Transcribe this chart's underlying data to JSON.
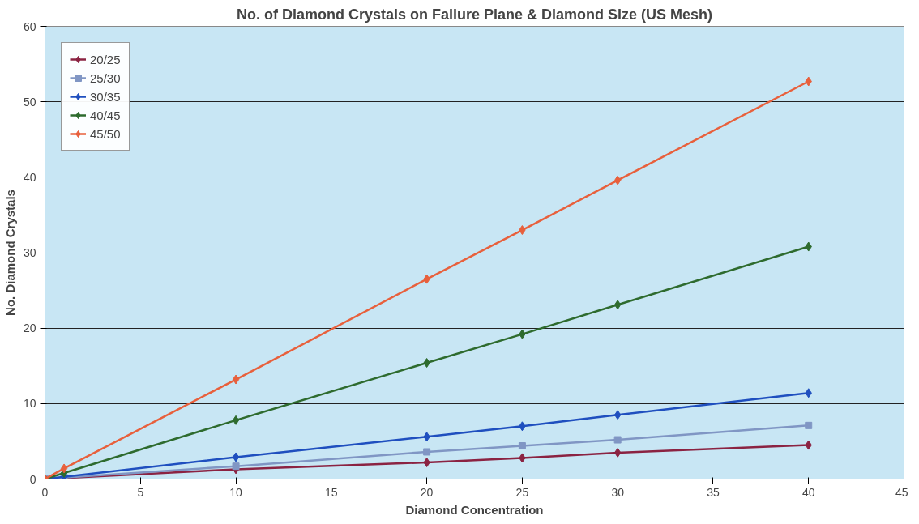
{
  "chart_data": {
    "type": "line",
    "title": "No. of Diamond Crystals on Failure Plane & Diamond Size (US Mesh)",
    "xlabel": "Diamond Concentration",
    "ylabel": "No. Diamond Crystals",
    "x": [
      0,
      1,
      10,
      20,
      25,
      30,
      40
    ],
    "series": [
      {
        "name": "20/25",
        "color": "#8b2342",
        "marker": "diamond",
        "x": [
          0,
          10,
          20,
          25,
          30,
          40
        ],
        "values": [
          0,
          1.3,
          2.2,
          2.8,
          3.5,
          4.5
        ]
      },
      {
        "name": "25/30",
        "color": "#8096c4",
        "marker": "square",
        "values": [
          0,
          0.2,
          1.7,
          3.6,
          4.4,
          5.2,
          7.1
        ]
      },
      {
        "name": "30/35",
        "color": "#1f4fbf",
        "marker": "diamond",
        "values": [
          0,
          0.3,
          2.9,
          5.6,
          7.0,
          8.5,
          11.4
        ]
      },
      {
        "name": "40/45",
        "color": "#2e6b2e",
        "marker": "diamond",
        "values": [
          0,
          0.8,
          7.8,
          15.4,
          19.2,
          23.1,
          30.8
        ]
      },
      {
        "name": "45/50",
        "color": "#e8603c",
        "marker": "diamond",
        "values": [
          0,
          1.4,
          13.2,
          26.5,
          33.0,
          39.6,
          52.7
        ]
      }
    ],
    "xlim": [
      0,
      45
    ],
    "xticks": [
      0,
      5,
      10,
      15,
      20,
      25,
      30,
      35,
      40,
      45
    ],
    "ylim": [
      0,
      60
    ],
    "yticks": [
      0,
      10,
      20,
      30,
      40,
      50,
      60
    ],
    "grid": "y",
    "legend": "top left"
  }
}
